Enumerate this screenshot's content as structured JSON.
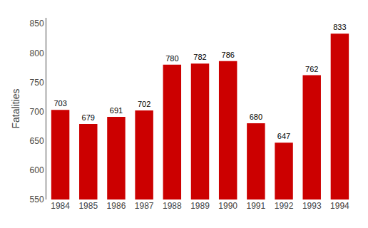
{
  "chart_data": {
    "type": "bar",
    "categories": [
      "1984",
      "1985",
      "1986",
      "1987",
      "1988",
      "1989",
      "1990",
      "1991",
      "1992",
      "1993",
      "1994"
    ],
    "values": [
      703,
      679,
      691,
      702,
      780,
      782,
      786,
      680,
      647,
      762,
      833
    ],
    "color": "#cc0000",
    "ylabel": "Fatalities",
    "ylim": [
      550,
      860
    ],
    "yticks": [
      550,
      600,
      650,
      700,
      750,
      800,
      850
    ],
    "grid": false,
    "data_labels": true
  }
}
